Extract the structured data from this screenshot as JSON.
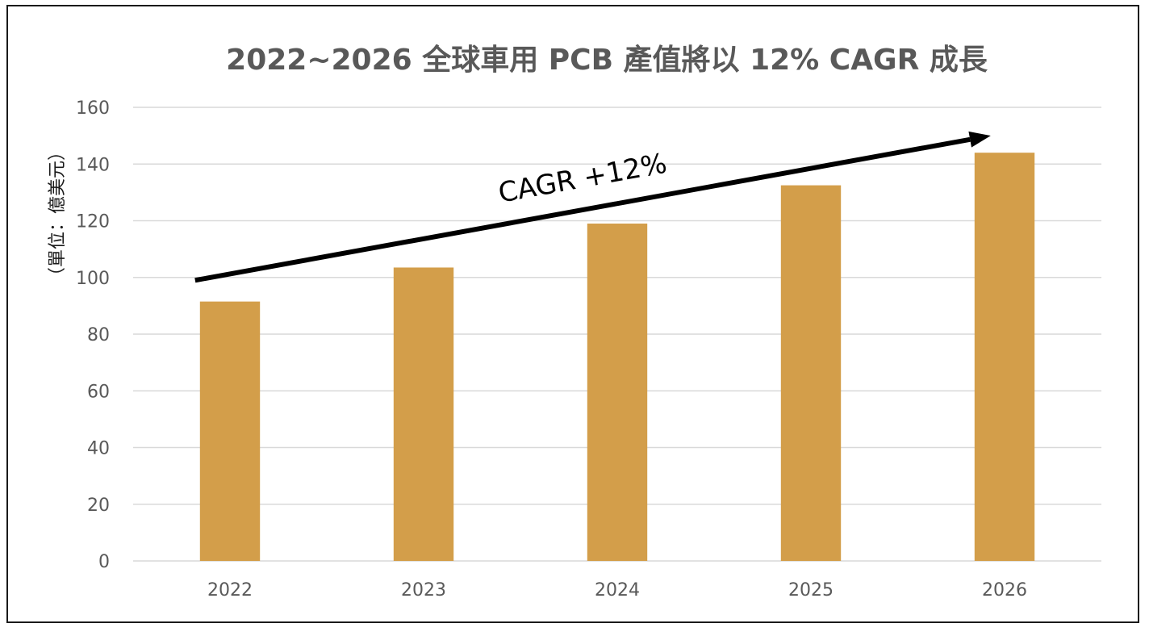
{
  "chart_data": {
    "type": "bar",
    "title": "2022~2026 全球車用 PCB 產值將以 12% CAGR 成長",
    "ylabel": "（單位：億美元）",
    "xlabel": "",
    "categories": [
      "2022",
      "2023",
      "2024",
      "2025",
      "2026"
    ],
    "series": [
      {
        "values": [
          91.5,
          103.5,
          119,
          132.5,
          144
        ]
      }
    ],
    "ylim": [
      0,
      160
    ],
    "yticks": [
      0,
      20,
      40,
      60,
      80,
      100,
      120,
      140,
      160
    ],
    "grid": true,
    "legend": "none",
    "colors": {
      "bar": "#D39E4A",
      "grid": "#d9d9d9",
      "arrow": "#000000"
    },
    "annotation": {
      "text": "CAGR +12%",
      "arrow_from": {
        "category": "2022",
        "value": 99
      },
      "arrow_to": {
        "category": "2026",
        "value": 150
      }
    }
  }
}
